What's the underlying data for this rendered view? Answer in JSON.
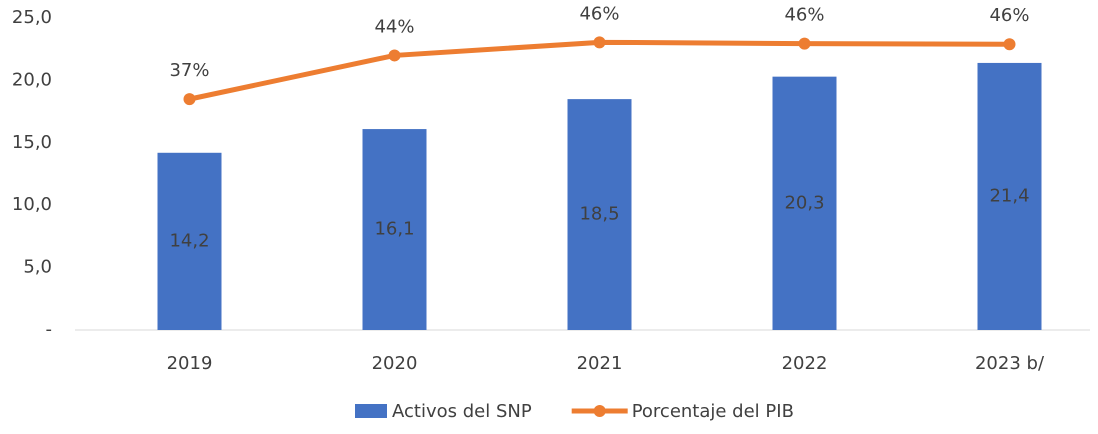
{
  "chart_data": {
    "type": "bar_line",
    "categories": [
      "2019",
      "2020",
      "2021",
      "2022",
      "2023 b/"
    ],
    "series": [
      {
        "name": "Activos del SNP",
        "type": "bar",
        "color": "#4472c4",
        "values": [
          14.2,
          16.1,
          18.5,
          20.3,
          21.4
        ],
        "value_labels": [
          "14,2",
          "16,1",
          "18,5",
          "20,3",
          "21,4"
        ]
      },
      {
        "name": "Porcentaje del PIB",
        "type": "line",
        "axis": "y2",
        "color": "#ed7d31",
        "values": [
          37,
          44,
          46.1,
          45.9,
          45.8
        ],
        "value_labels": [
          "37%",
          "44%",
          "46%",
          "46%",
          "46%"
        ]
      }
    ],
    "ylim": [
      0,
      25
    ],
    "yticks": [
      {
        "value": 0,
        "label": "-"
      },
      {
        "value": 5,
        "label": "5,0"
      },
      {
        "value": 10,
        "label": "10,0"
      },
      {
        "value": 15,
        "label": "15,0"
      },
      {
        "value": 20,
        "label": "20,0"
      },
      {
        "value": 25,
        "label": "25,0"
      }
    ],
    "y2lim": [
      0,
      50
    ],
    "grid": false,
    "legend": "bottom"
  }
}
